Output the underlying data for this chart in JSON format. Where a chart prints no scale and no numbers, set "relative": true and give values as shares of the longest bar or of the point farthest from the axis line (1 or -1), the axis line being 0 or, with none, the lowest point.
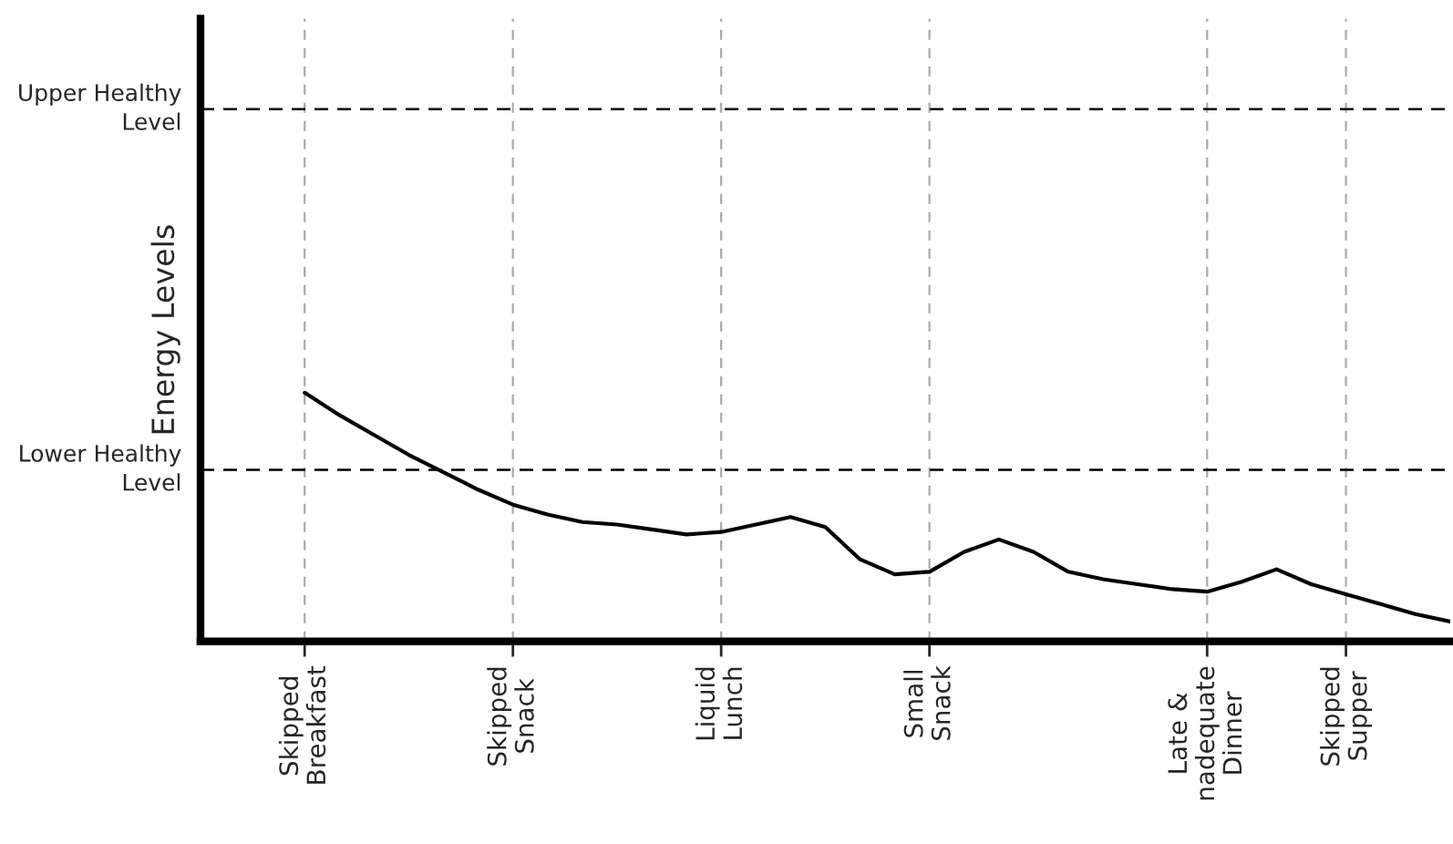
{
  "chart_data": {
    "type": "line",
    "relative": true,
    "ylabel": "Energy Levels",
    "categories": [
      null,
      "Skipped\nBreakfast",
      null,
      null,
      null,
      null,
      null,
      "Skipped\nSnack",
      null,
      null,
      null,
      null,
      null,
      "Liquid\nLunch",
      null,
      null,
      null,
      null,
      null,
      "Small\nSnack",
      null,
      null,
      null,
      null,
      null,
      null,
      null,
      "Late &\nnadequate\nDinner",
      null,
      null,
      null,
      "Skipped\nSupper",
      null,
      null,
      null
    ],
    "grid": "x",
    "marker": "none",
    "line_style": "solid",
    "series": [
      {
        "color": "#000000",
        "values": [
          null,
          1.0,
          0.91,
          0.83,
          0.75,
          0.68,
          0.61,
          0.55,
          0.51,
          0.48,
          0.47,
          0.45,
          0.43,
          0.44,
          0.47,
          0.5,
          0.46,
          0.33,
          0.27,
          0.28,
          0.36,
          0.41,
          0.36,
          0.28,
          0.25,
          0.23,
          0.21,
          0.2,
          0.24,
          0.29,
          0.23,
          0.19,
          0.15,
          0.11,
          0.08
        ]
      }
    ],
    "ref_lines": [
      {
        "axis": "y",
        "value": 2.14,
        "label": "Upper Healthy\nLevel",
        "color": "#000000",
        "line_style": "dashed"
      },
      {
        "axis": "y",
        "value": 0.69,
        "label": "Lower Healthy\nLevel",
        "color": "#000000",
        "line_style": "dashed"
      }
    ]
  }
}
